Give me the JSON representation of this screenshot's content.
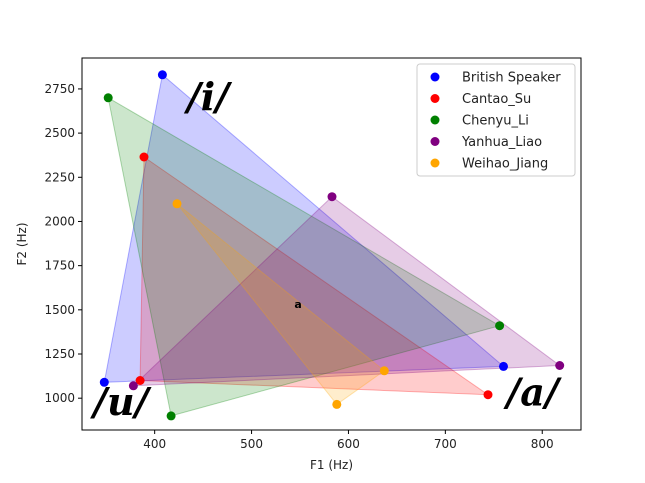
{
  "chart_data": {
    "type": "scatter",
    "xlabel": "F1 (Hz)",
    "ylabel": "F2 (Hz)",
    "xlim": [
      325,
      840
    ],
    "ylim": [
      820,
      2925
    ],
    "xticks": [
      400,
      500,
      600,
      700,
      800
    ],
    "yticks": [
      1000,
      1250,
      1500,
      1750,
      2000,
      2250,
      2500,
      2750
    ],
    "grid": false,
    "legend_position": "top-right",
    "series": [
      {
        "name": "British Speaker",
        "color": "#0000ff",
        "points": [
          [
            408,
            2830
          ],
          [
            760,
            1180
          ],
          [
            348,
            1090
          ]
        ]
      },
      {
        "name": "Cantao_Su",
        "color": "#ff0000",
        "points": [
          [
            389,
            2365
          ],
          [
            744,
            1020
          ],
          [
            385,
            1100
          ]
        ]
      },
      {
        "name": "Chenyu_Li",
        "color": "#008000",
        "points": [
          [
            352,
            2700
          ],
          [
            756,
            1410
          ],
          [
            417,
            900
          ]
        ]
      },
      {
        "name": "Yanhua_Liao",
        "color": "#800080",
        "points": [
          [
            583,
            2140
          ],
          [
            818,
            1185
          ],
          [
            378,
            1070
          ]
        ]
      },
      {
        "name": "Weihao_Jiang",
        "color": "#ffa500",
        "points": [
          [
            423,
            2100
          ],
          [
            637,
            1155
          ],
          [
            588,
            965
          ]
        ]
      }
    ],
    "annotations": [
      {
        "text": "/i/",
        "x": 455,
        "y": 2630
      },
      {
        "text": "/u/",
        "x": 365,
        "y": 905
      },
      {
        "text": "/a/",
        "x": 790,
        "y": 960
      },
      {
        "text": "a",
        "x": 548,
        "y": 1510
      }
    ]
  }
}
